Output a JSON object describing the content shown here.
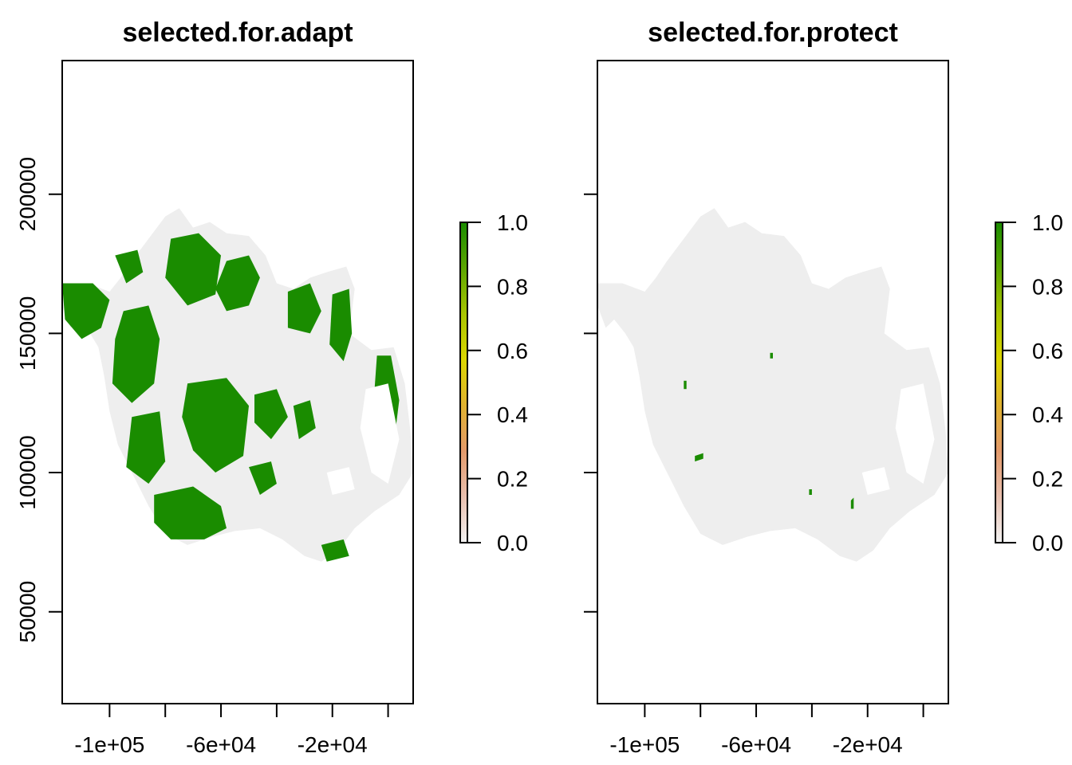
{
  "chart_data": [
    {
      "type": "heatmap",
      "title": "selected.for.adapt",
      "xlabel": "",
      "ylabel": "",
      "xlim": [
        -117000,
        9000
      ],
      "ylim": [
        17000,
        248000
      ],
      "x_ticks": [
        -100000,
        -80000,
        -60000,
        -40000,
        -20000,
        0
      ],
      "x_tick_labels": [
        "-1e+05",
        "",
        "-6e+04",
        "",
        "-2e+04",
        ""
      ],
      "y_ticks": [
        50000,
        100000,
        150000,
        200000
      ],
      "y_tick_labels": [
        "50000",
        "100000",
        "150000",
        "200000"
      ],
      "legend": {
        "type": "colorbar",
        "placement": "right",
        "range": [
          0.0,
          1.0
        ],
        "ticks": [
          0.0,
          0.2,
          0.4,
          0.6,
          0.8,
          1.0
        ],
        "tick_labels": [
          "0.0",
          "0.2",
          "0.4",
          "0.6",
          "0.8",
          "1.0"
        ]
      },
      "study_area_outline": [
        [
          -117000,
          168000
        ],
        [
          -108000,
          168000
        ],
        [
          -100000,
          165000
        ],
        [
          -96000,
          170000
        ],
        [
          -92000,
          176000
        ],
        [
          -86000,
          184000
        ],
        [
          -80000,
          192000
        ],
        [
          -75000,
          195000
        ],
        [
          -70000,
          188000
        ],
        [
          -64000,
          190000
        ],
        [
          -58000,
          186000
        ],
        [
          -50000,
          185000
        ],
        [
          -44000,
          178000
        ],
        [
          -40000,
          168000
        ],
        [
          -34000,
          166000
        ],
        [
          -28000,
          170000
        ],
        [
          -22000,
          172000
        ],
        [
          -15000,
          174000
        ],
        [
          -12000,
          166000
        ],
        [
          -14000,
          150000
        ],
        [
          -6000,
          144000
        ],
        [
          2000,
          145000
        ],
        [
          6000,
          132000
        ],
        [
          8000,
          115000
        ],
        [
          9000,
          100000
        ],
        [
          4000,
          92000
        ],
        [
          -5000,
          86000
        ],
        [
          -12000,
          80000
        ],
        [
          -18000,
          72000
        ],
        [
          -24000,
          68000
        ],
        [
          -30000,
          70000
        ],
        [
          -38000,
          76000
        ],
        [
          -46000,
          80000
        ],
        [
          -55000,
          79000
        ],
        [
          -63000,
          77000
        ],
        [
          -72000,
          74000
        ],
        [
          -80000,
          78000
        ],
        [
          -86000,
          88000
        ],
        [
          -92000,
          100000
        ],
        [
          -97000,
          110000
        ],
        [
          -100000,
          122000
        ],
        [
          -102000,
          135000
        ],
        [
          -104000,
          145000
        ],
        [
          -107000,
          150000
        ],
        [
          -111000,
          155000
        ],
        [
          -114000,
          152000
        ],
        [
          -117000,
          160000
        ]
      ],
      "value_regions": [
        {
          "value": 1,
          "color": "#1a8c00",
          "polygon": [
            [
              -117000,
              168000
            ],
            [
              -106000,
              168000
            ],
            [
              -100000,
              162000
            ],
            [
              -103000,
              152000
            ],
            [
              -110000,
              148000
            ],
            [
              -116000,
              155000
            ]
          ]
        },
        {
          "value": 1,
          "color": "#1a8c00",
          "polygon": [
            [
              -95000,
              158000
            ],
            [
              -86000,
              160000
            ],
            [
              -82000,
              148000
            ],
            [
              -84000,
              132000
            ],
            [
              -92000,
              125000
            ],
            [
              -99000,
              132000
            ],
            [
              -98000,
              148000
            ]
          ]
        },
        {
          "value": 1,
          "color": "#1a8c00",
          "polygon": [
            [
              -78000,
              184000
            ],
            [
              -68000,
              186000
            ],
            [
              -60000,
              178000
            ],
            [
              -62000,
              164000
            ],
            [
              -72000,
              160000
            ],
            [
              -80000,
              170000
            ]
          ]
        },
        {
          "value": 1,
          "color": "#1a8c00",
          "polygon": [
            [
              -58000,
              176000
            ],
            [
              -50000,
              178000
            ],
            [
              -46000,
              170000
            ],
            [
              -50000,
              160000
            ],
            [
              -58000,
              158000
            ],
            [
              -62000,
              166000
            ]
          ]
        },
        {
          "value": 1,
          "color": "#1a8c00",
          "polygon": [
            [
              -72000,
              132000
            ],
            [
              -58000,
              134000
            ],
            [
              -50000,
              124000
            ],
            [
              -52000,
              106000
            ],
            [
              -62000,
              100000
            ],
            [
              -70000,
              108000
            ],
            [
              -74000,
              120000
            ]
          ]
        },
        {
          "value": 1,
          "color": "#1a8c00",
          "polygon": [
            [
              -92000,
              120000
            ],
            [
              -82000,
              122000
            ],
            [
              -80000,
              104000
            ],
            [
              -86000,
              96000
            ],
            [
              -94000,
              102000
            ]
          ]
        },
        {
          "value": 1,
          "color": "#1a8c00",
          "polygon": [
            [
              -84000,
              92000
            ],
            [
              -70000,
              95000
            ],
            [
              -60000,
              88000
            ],
            [
              -58000,
              80000
            ],
            [
              -66000,
              76000
            ],
            [
              -78000,
              76000
            ],
            [
              -84000,
              82000
            ]
          ]
        },
        {
          "value": 1,
          "color": "#1a8c00",
          "polygon": [
            [
              -36000,
              165000
            ],
            [
              -28000,
              168000
            ],
            [
              -24000,
              158000
            ],
            [
              -28000,
              150000
            ],
            [
              -36000,
              152000
            ]
          ]
        },
        {
          "value": 1,
          "color": "#1a8c00",
          "polygon": [
            [
              -20000,
              164000
            ],
            [
              -14000,
              166000
            ],
            [
              -13000,
              150000
            ],
            [
              -16000,
              140000
            ],
            [
              -21000,
              146000
            ]
          ]
        },
        {
          "value": 1,
          "color": "#1a8c00",
          "polygon": [
            [
              -48000,
              128000
            ],
            [
              -40000,
              130000
            ],
            [
              -36000,
              120000
            ],
            [
              -42000,
              112000
            ],
            [
              -48000,
              118000
            ]
          ]
        },
        {
          "value": 1,
          "color": "#1a8c00",
          "polygon": [
            [
              -50000,
              102000
            ],
            [
              -42000,
              104000
            ],
            [
              -40000,
              96000
            ],
            [
              -46000,
              92000
            ]
          ]
        },
        {
          "value": 1,
          "color": "#1a8c00",
          "polygon": [
            [
              -34000,
              124000
            ],
            [
              -28000,
              126000
            ],
            [
              -26000,
              116000
            ],
            [
              -32000,
              112000
            ]
          ]
        },
        {
          "value": 1,
          "color": "#1a8c00",
          "polygon": [
            [
              -4000,
              142000
            ],
            [
              1000,
              142000
            ],
            [
              4000,
              126000
            ],
            [
              2000,
              110000
            ],
            [
              -3000,
              114000
            ],
            [
              -5000,
              128000
            ]
          ]
        },
        {
          "value": 1,
          "color": "#1a8c00",
          "polygon": [
            [
              -24000,
              74000
            ],
            [
              -16000,
              76000
            ],
            [
              -14000,
              70000
            ],
            [
              -22000,
              68000
            ]
          ]
        },
        {
          "value": 1,
          "color": "#1a8c00",
          "polygon": [
            [
              -98000,
              178000
            ],
            [
              -90000,
              180000
            ],
            [
              -88000,
              172000
            ],
            [
              -94000,
              168000
            ]
          ]
        }
      ],
      "nodata_regions": [
        {
          "polygon": [
            [
              -8000,
              130000
            ],
            [
              0,
              132000
            ],
            [
              4000,
              112000
            ],
            [
              0,
              96000
            ],
            [
              -6000,
              100000
            ],
            [
              -10000,
              116000
            ]
          ]
        },
        {
          "polygon": [
            [
              -22000,
              100000
            ],
            [
              -14000,
              102000
            ],
            [
              -12000,
              94000
            ],
            [
              -20000,
              92000
            ]
          ]
        }
      ]
    },
    {
      "type": "heatmap",
      "title": "selected.for.protect",
      "xlabel": "",
      "ylabel": "",
      "xlim": [
        -117000,
        9000
      ],
      "ylim": [
        17000,
        248000
      ],
      "x_ticks": [
        -100000,
        -80000,
        -60000,
        -40000,
        -20000,
        0
      ],
      "x_tick_labels": [
        "-1e+05",
        "",
        "-6e+04",
        "",
        "-2e+04",
        ""
      ],
      "y_ticks": [
        50000,
        100000,
        150000,
        200000
      ],
      "y_tick_labels": [
        "",
        "",
        "",
        ""
      ],
      "legend": {
        "type": "colorbar",
        "placement": "right",
        "range": [
          0.0,
          1.0
        ],
        "ticks": [
          0.0,
          0.2,
          0.4,
          0.6,
          0.8,
          1.0
        ],
        "tick_labels": [
          "0.0",
          "0.2",
          "0.4",
          "0.6",
          "0.8",
          "1.0"
        ]
      },
      "study_area_outline": [
        [
          -117000,
          168000
        ],
        [
          -108000,
          168000
        ],
        [
          -100000,
          165000
        ],
        [
          -96000,
          170000
        ],
        [
          -92000,
          176000
        ],
        [
          -86000,
          184000
        ],
        [
          -80000,
          192000
        ],
        [
          -75000,
          195000
        ],
        [
          -70000,
          188000
        ],
        [
          -64000,
          190000
        ],
        [
          -58000,
          186000
        ],
        [
          -50000,
          185000
        ],
        [
          -44000,
          178000
        ],
        [
          -40000,
          168000
        ],
        [
          -34000,
          166000
        ],
        [
          -28000,
          170000
        ],
        [
          -22000,
          172000
        ],
        [
          -15000,
          174000
        ],
        [
          -12000,
          166000
        ],
        [
          -14000,
          150000
        ],
        [
          -6000,
          144000
        ],
        [
          2000,
          145000
        ],
        [
          6000,
          132000
        ],
        [
          8000,
          115000
        ],
        [
          9000,
          100000
        ],
        [
          4000,
          92000
        ],
        [
          -5000,
          86000
        ],
        [
          -12000,
          80000
        ],
        [
          -18000,
          72000
        ],
        [
          -24000,
          68000
        ],
        [
          -30000,
          70000
        ],
        [
          -38000,
          76000
        ],
        [
          -46000,
          80000
        ],
        [
          -55000,
          79000
        ],
        [
          -63000,
          77000
        ],
        [
          -72000,
          74000
        ],
        [
          -80000,
          78000
        ],
        [
          -86000,
          88000
        ],
        [
          -92000,
          100000
        ],
        [
          -97000,
          110000
        ],
        [
          -100000,
          122000
        ],
        [
          -102000,
          135000
        ],
        [
          -104000,
          145000
        ],
        [
          -107000,
          150000
        ],
        [
          -111000,
          155000
        ],
        [
          -114000,
          152000
        ],
        [
          -117000,
          160000
        ]
      ],
      "value_regions": [
        {
          "value": 1,
          "color": "#1a8c00",
          "polygon": [
            [
              -86000,
              133000
            ],
            [
              -85000,
              133000
            ],
            [
              -85000,
              130000
            ],
            [
              -86000,
              130000
            ]
          ]
        },
        {
          "value": 1,
          "color": "#1a8c00",
          "polygon": [
            [
              -82000,
              106000
            ],
            [
              -79000,
              107000
            ],
            [
              -79000,
              105000
            ],
            [
              -82000,
              104000
            ]
          ]
        },
        {
          "value": 1,
          "color": "#1a8c00",
          "polygon": [
            [
              -55000,
              143000
            ],
            [
              -54000,
              143000
            ],
            [
              -54000,
              141000
            ],
            [
              -55000,
              141000
            ]
          ]
        },
        {
          "value": 1,
          "color": "#1a8c00",
          "polygon": [
            [
              -26000,
              90000
            ],
            [
              -25000,
              91000
            ],
            [
              -25000,
              87000
            ],
            [
              -26000,
              87000
            ]
          ]
        },
        {
          "value": 1,
          "color": "#1a8c00",
          "polygon": [
            [
              -41000,
              94000
            ],
            [
              -40000,
              94000
            ],
            [
              -40000,
              92000
            ],
            [
              -41000,
              92000
            ]
          ]
        }
      ],
      "nodata_regions": [
        {
          "polygon": [
            [
              -8000,
              130000
            ],
            [
              0,
              132000
            ],
            [
              4000,
              112000
            ],
            [
              0,
              96000
            ],
            [
              -6000,
              100000
            ],
            [
              -10000,
              116000
            ]
          ]
        },
        {
          "polygon": [
            [
              -22000,
              100000
            ],
            [
              -14000,
              102000
            ],
            [
              -12000,
              94000
            ],
            [
              -20000,
              92000
            ]
          ]
        }
      ]
    }
  ],
  "colors": {
    "zero": "#eeeeee",
    "one": "#1a8c00",
    "colorbar_stops": [
      "#f2f2f2",
      "#e8bfae",
      "#e39a6b",
      "#e0b230",
      "#dcd600",
      "#a8c400",
      "#5ca600",
      "#1a8c00"
    ]
  }
}
